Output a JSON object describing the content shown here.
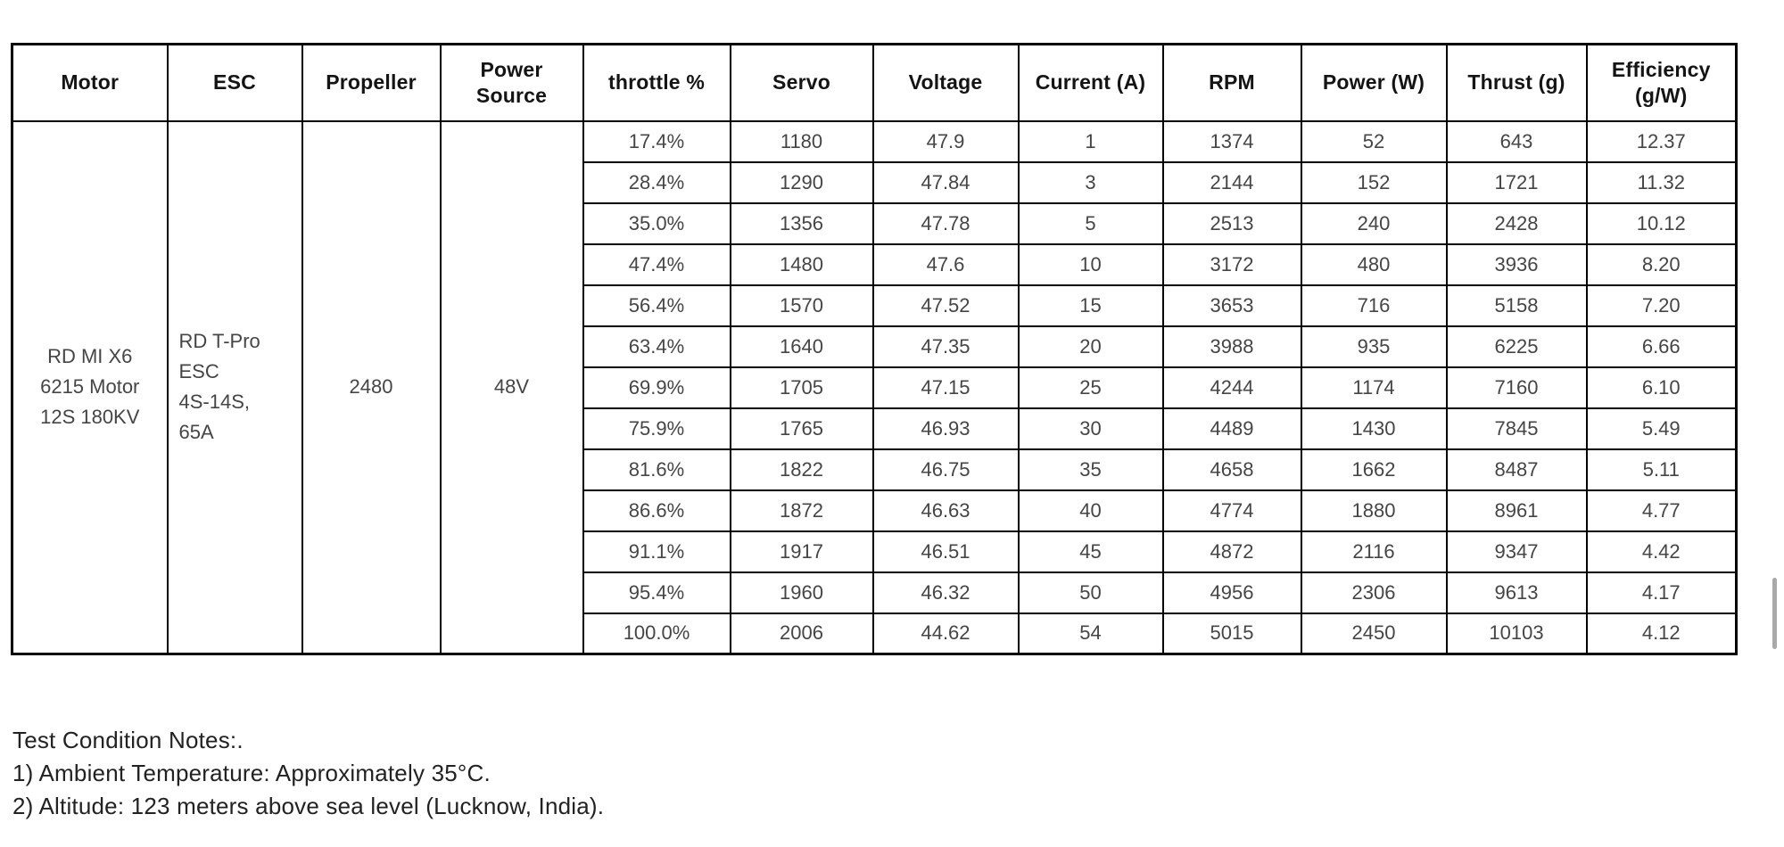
{
  "table": {
    "headers": [
      "Motor",
      "ESC",
      "Propeller",
      "Power Source",
      "throttle %",
      "Servo",
      "Voltage",
      "Current (A)",
      "RPM",
      "Power (W)",
      "Thrust (g)",
      "Efficiency (g/W)"
    ],
    "merged_cells": {
      "motor": "RD MI X6\n6215 Motor\n12S 180KV",
      "esc": "RD T-Pro\nESC\n4S-14S,\n65A",
      "propeller": "2480",
      "power_source": "48V"
    },
    "rows": [
      [
        "17.4%",
        "1180",
        "47.9",
        "1",
        "1374",
        "52",
        "643",
        "12.37"
      ],
      [
        "28.4%",
        "1290",
        "47.84",
        "3",
        "2144",
        "152",
        "1721",
        "11.32"
      ],
      [
        "35.0%",
        "1356",
        "47.78",
        "5",
        "2513",
        "240",
        "2428",
        "10.12"
      ],
      [
        "47.4%",
        "1480",
        "47.6",
        "10",
        "3172",
        "480",
        "3936",
        "8.20"
      ],
      [
        "56.4%",
        "1570",
        "47.52",
        "15",
        "3653",
        "716",
        "5158",
        "7.20"
      ],
      [
        "63.4%",
        "1640",
        "47.35",
        "20",
        "3988",
        "935",
        "6225",
        "6.66"
      ],
      [
        "69.9%",
        "1705",
        "47.15",
        "25",
        "4244",
        "1174",
        "7160",
        "6.10"
      ],
      [
        "75.9%",
        "1765",
        "46.93",
        "30",
        "4489",
        "1430",
        "7845",
        "5.49"
      ],
      [
        "81.6%",
        "1822",
        "46.75",
        "35",
        "4658",
        "1662",
        "8487",
        "5.11"
      ],
      [
        "86.6%",
        "1872",
        "46.63",
        "40",
        "4774",
        "1880",
        "8961",
        "4.77"
      ],
      [
        "91.1%",
        "1917",
        "46.51",
        "45",
        "4872",
        "2116",
        "9347",
        "4.42"
      ],
      [
        "95.4%",
        "1960",
        "46.32",
        "50",
        "4956",
        "2306",
        "9613",
        "4.17"
      ],
      [
        "100.0%",
        "2006",
        "44.62",
        "54",
        "5015",
        "2450",
        "10103",
        "4.12"
      ]
    ]
  },
  "notes": {
    "title": "Test Condition Notes:.",
    "line1": "1) Ambient Temperature: Approximately 35°C.",
    "line2": "2) Altitude: 123 meters above sea level (Lucknow, India)."
  },
  "colors": {
    "border": "#000000",
    "header_text": "#141414",
    "body_text": "#454545",
    "scrollbar": "#a9a9a9"
  }
}
